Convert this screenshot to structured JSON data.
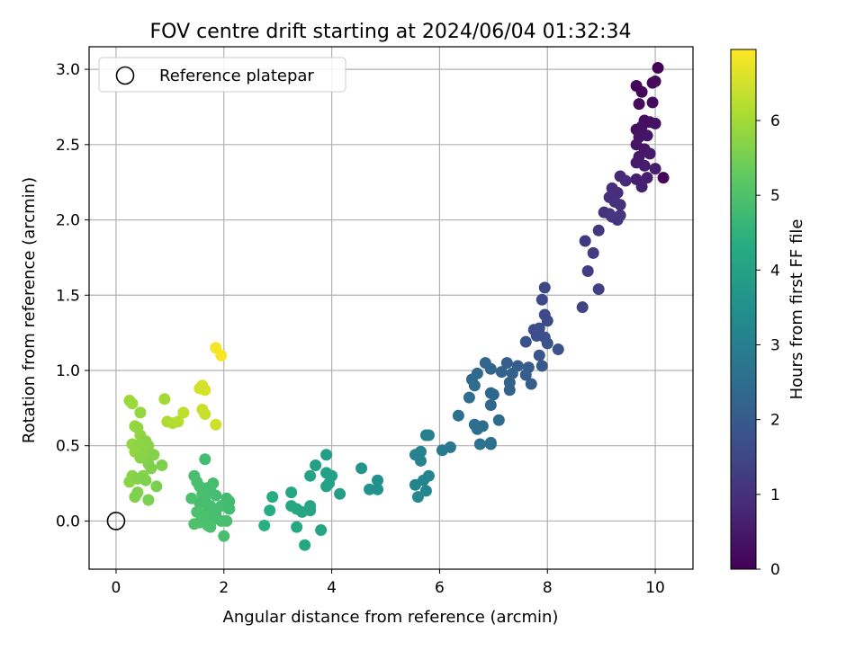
{
  "chart_data": {
    "type": "scatter",
    "title": "FOV centre drift starting at 2024/06/04 01:32:34",
    "xlabel": "Angular distance from reference (arcmin)",
    "ylabel": "Rotation from reference (arcmin)",
    "xlim": [
      -0.5,
      10.7
    ],
    "ylim": [
      -0.32,
      3.15
    ],
    "xticks": [
      0,
      2,
      4,
      6,
      8,
      10
    ],
    "yticks": [
      0.0,
      0.5,
      1.0,
      1.5,
      2.0,
      2.5,
      3.0
    ],
    "xtick_labels": [
      "0",
      "2",
      "4",
      "6",
      "8",
      "10"
    ],
    "ytick_labels": [
      "0.0",
      "0.5",
      "1.0",
      "1.5",
      "2.0",
      "2.5",
      "3.0"
    ],
    "grid": true,
    "legend": {
      "placement": "top-left",
      "label": "Reference platepar"
    },
    "reference_point": {
      "x": 0,
      "y": 0
    },
    "colorbar": {
      "label": "Hours from first FF file",
      "range": [
        0,
        6.95
      ],
      "ticks": [
        0,
        1,
        2,
        3,
        4,
        5,
        6
      ],
      "tick_labels": [
        "0",
        "1",
        "2",
        "3",
        "4",
        "5",
        "6"
      ],
      "colormap": "viridis"
    },
    "points": [
      {
        "x": 10.05,
        "y": 3.01,
        "t": 0.05
      },
      {
        "x": 9.65,
        "y": 2.89,
        "t": 0.12
      },
      {
        "x": 9.75,
        "y": 2.85,
        "t": 0.1
      },
      {
        "x": 9.95,
        "y": 2.91,
        "t": 0.15
      },
      {
        "x": 10.0,
        "y": 2.92,
        "t": 0.18
      },
      {
        "x": 9.7,
        "y": 2.77,
        "t": 0.2
      },
      {
        "x": 9.95,
        "y": 2.78,
        "t": 0.22
      },
      {
        "x": 9.8,
        "y": 2.66,
        "t": 0.25
      },
      {
        "x": 9.9,
        "y": 2.65,
        "t": 0.28
      },
      {
        "x": 9.65,
        "y": 2.6,
        "t": 0.3
      },
      {
        "x": 9.75,
        "y": 2.62,
        "t": 0.32
      },
      {
        "x": 10.0,
        "y": 2.64,
        "t": 0.35
      },
      {
        "x": 9.7,
        "y": 2.55,
        "t": 0.38
      },
      {
        "x": 9.85,
        "y": 2.56,
        "t": 0.4
      },
      {
        "x": 9.65,
        "y": 2.5,
        "t": 0.42
      },
      {
        "x": 9.8,
        "y": 2.47,
        "t": 0.45
      },
      {
        "x": 9.7,
        "y": 2.42,
        "t": 0.48
      },
      {
        "x": 9.9,
        "y": 2.44,
        "t": 0.5
      },
      {
        "x": 9.65,
        "y": 2.38,
        "t": 0.52
      },
      {
        "x": 9.8,
        "y": 2.36,
        "t": 0.55
      },
      {
        "x": 10.0,
        "y": 2.34,
        "t": 0.57
      },
      {
        "x": 9.85,
        "y": 2.28,
        "t": 0.6
      },
      {
        "x": 10.15,
        "y": 2.28,
        "t": 0.06
      },
      {
        "x": 9.65,
        "y": 2.27,
        "t": 0.62
      },
      {
        "x": 9.75,
        "y": 2.22,
        "t": 0.65
      },
      {
        "x": 9.35,
        "y": 2.29,
        "t": 0.8
      },
      {
        "x": 9.45,
        "y": 2.26,
        "t": 0.85
      },
      {
        "x": 9.2,
        "y": 2.21,
        "t": 0.9
      },
      {
        "x": 9.3,
        "y": 2.18,
        "t": 0.92
      },
      {
        "x": 9.15,
        "y": 2.15,
        "t": 0.95
      },
      {
        "x": 9.25,
        "y": 2.12,
        "t": 0.98
      },
      {
        "x": 9.35,
        "y": 2.1,
        "t": 1.0
      },
      {
        "x": 9.05,
        "y": 2.05,
        "t": 1.02
      },
      {
        "x": 9.15,
        "y": 2.04,
        "t": 1.05
      },
      {
        "x": 9.3,
        "y": 2.0,
        "t": 1.08
      },
      {
        "x": 9.2,
        "y": 2.02,
        "t": 1.1
      },
      {
        "x": 9.35,
        "y": 2.03,
        "t": 1.12
      },
      {
        "x": 8.95,
        "y": 1.93,
        "t": 1.15
      },
      {
        "x": 8.7,
        "y": 1.86,
        "t": 1.2
      },
      {
        "x": 8.85,
        "y": 1.78,
        "t": 1.25
      },
      {
        "x": 8.75,
        "y": 1.66,
        "t": 1.3
      },
      {
        "x": 8.95,
        "y": 1.54,
        "t": 1.35
      },
      {
        "x": 8.65,
        "y": 1.42,
        "t": 1.4
      },
      {
        "x": 7.95,
        "y": 1.55,
        "t": 1.5
      },
      {
        "x": 7.9,
        "y": 1.47,
        "t": 1.55
      },
      {
        "x": 7.95,
        "y": 1.37,
        "t": 1.6
      },
      {
        "x": 8.0,
        "y": 1.33,
        "t": 1.62
      },
      {
        "x": 7.75,
        "y": 1.27,
        "t": 1.65
      },
      {
        "x": 7.85,
        "y": 1.28,
        "t": 1.68
      },
      {
        "x": 7.8,
        "y": 1.23,
        "t": 1.7
      },
      {
        "x": 7.95,
        "y": 1.22,
        "t": 1.72
      },
      {
        "x": 7.6,
        "y": 1.19,
        "t": 1.75
      },
      {
        "x": 8.0,
        "y": 1.18,
        "t": 1.78
      },
      {
        "x": 8.2,
        "y": 1.14,
        "t": 1.8
      },
      {
        "x": 7.85,
        "y": 1.1,
        "t": 1.85
      },
      {
        "x": 6.85,
        "y": 1.05,
        "t": 2.3
      },
      {
        "x": 7.25,
        "y": 1.05,
        "t": 2.1
      },
      {
        "x": 7.45,
        "y": 1.03,
        "t": 2.05
      },
      {
        "x": 7.65,
        "y": 1.02,
        "t": 2.0
      },
      {
        "x": 7.9,
        "y": 1.03,
        "t": 1.95
      },
      {
        "x": 6.95,
        "y": 1.01,
        "t": 2.25
      },
      {
        "x": 7.15,
        "y": 0.99,
        "t": 2.2
      },
      {
        "x": 7.35,
        "y": 0.98,
        "t": 2.15
      },
      {
        "x": 7.6,
        "y": 0.97,
        "t": 2.1
      },
      {
        "x": 6.7,
        "y": 0.98,
        "t": 2.4
      },
      {
        "x": 6.6,
        "y": 0.94,
        "t": 2.45
      },
      {
        "x": 7.3,
        "y": 0.92,
        "t": 2.2
      },
      {
        "x": 7.7,
        "y": 0.91,
        "t": 2.05
      },
      {
        "x": 6.65,
        "y": 0.9,
        "t": 2.5
      },
      {
        "x": 7.3,
        "y": 0.87,
        "t": 2.2
      },
      {
        "x": 6.95,
        "y": 0.85,
        "t": 2.35
      },
      {
        "x": 7.0,
        "y": 0.84,
        "t": 2.35
      },
      {
        "x": 6.55,
        "y": 0.82,
        "t": 2.5
      },
      {
        "x": 6.95,
        "y": 0.77,
        "t": 2.4
      },
      {
        "x": 6.35,
        "y": 0.7,
        "t": 2.6
      },
      {
        "x": 7.1,
        "y": 0.67,
        "t": 2.45
      },
      {
        "x": 6.65,
        "y": 0.64,
        "t": 2.55
      },
      {
        "x": 6.8,
        "y": 0.63,
        "t": 2.5
      },
      {
        "x": 6.7,
        "y": 0.61,
        "t": 2.55
      },
      {
        "x": 5.75,
        "y": 0.57,
        "t": 3.0
      },
      {
        "x": 5.8,
        "y": 0.57,
        "t": 3.0
      },
      {
        "x": 6.75,
        "y": 0.51,
        "t": 2.6
      },
      {
        "x": 6.95,
        "y": 0.52,
        "t": 2.55
      },
      {
        "x": 6.95,
        "y": 0.51,
        "t": 2.6
      },
      {
        "x": 6.2,
        "y": 0.49,
        "t": 2.8
      },
      {
        "x": 6.05,
        "y": 0.47,
        "t": 2.85
      },
      {
        "x": 5.65,
        "y": 0.46,
        "t": 3.05
      },
      {
        "x": 5.55,
        "y": 0.44,
        "t": 3.1
      },
      {
        "x": 5.65,
        "y": 0.4,
        "t": 3.1
      },
      {
        "x": 5.8,
        "y": 0.3,
        "t": 3.15
      },
      {
        "x": 5.7,
        "y": 0.27,
        "t": 3.2
      },
      {
        "x": 5.55,
        "y": 0.24,
        "t": 3.2
      },
      {
        "x": 5.75,
        "y": 0.2,
        "t": 3.2
      },
      {
        "x": 5.6,
        "y": 0.16,
        "t": 3.25
      },
      {
        "x": 4.85,
        "y": 0.27,
        "t": 3.5
      },
      {
        "x": 4.55,
        "y": 0.35,
        "t": 3.6
      },
      {
        "x": 4.7,
        "y": 0.21,
        "t": 3.55
      },
      {
        "x": 4.85,
        "y": 0.21,
        "t": 3.55
      },
      {
        "x": 3.9,
        "y": 0.44,
        "t": 3.9
      },
      {
        "x": 3.7,
        "y": 0.37,
        "t": 3.95
      },
      {
        "x": 3.6,
        "y": 0.3,
        "t": 4.0
      },
      {
        "x": 3.9,
        "y": 0.32,
        "t": 3.95
      },
      {
        "x": 4.0,
        "y": 0.3,
        "t": 3.95
      },
      {
        "x": 3.95,
        "y": 0.25,
        "t": 3.95
      },
      {
        "x": 3.9,
        "y": 0.23,
        "t": 3.95
      },
      {
        "x": 4.15,
        "y": 0.18,
        "t": 3.9
      },
      {
        "x": 3.25,
        "y": 0.19,
        "t": 4.1
      },
      {
        "x": 3.25,
        "y": 0.1,
        "t": 4.15
      },
      {
        "x": 3.35,
        "y": 0.08,
        "t": 4.15
      },
      {
        "x": 3.45,
        "y": 0.06,
        "t": 4.15
      },
      {
        "x": 3.6,
        "y": 0.1,
        "t": 4.1
      },
      {
        "x": 3.6,
        "y": 0.07,
        "t": 4.1
      },
      {
        "x": 2.9,
        "y": 0.16,
        "t": 4.3
      },
      {
        "x": 2.85,
        "y": 0.07,
        "t": 4.35
      },
      {
        "x": 2.75,
        "y": -0.03,
        "t": 4.4
      },
      {
        "x": 3.35,
        "y": -0.04,
        "t": 4.2
      },
      {
        "x": 3.8,
        "y": -0.06,
        "t": 4.1
      },
      {
        "x": 3.5,
        "y": -0.16,
        "t": 4.15
      },
      {
        "x": 1.65,
        "y": 0.41,
        "t": 4.8
      },
      {
        "x": 1.45,
        "y": 0.3,
        "t": 4.9
      },
      {
        "x": 1.5,
        "y": 0.26,
        "t": 4.9
      },
      {
        "x": 1.55,
        "y": 0.23,
        "t": 4.9
      },
      {
        "x": 1.7,
        "y": 0.22,
        "t": 4.85
      },
      {
        "x": 1.8,
        "y": 0.25,
        "t": 4.85
      },
      {
        "x": 1.75,
        "y": 0.2,
        "t": 4.85
      },
      {
        "x": 1.6,
        "y": 0.18,
        "t": 4.9
      },
      {
        "x": 1.85,
        "y": 0.17,
        "t": 4.85
      },
      {
        "x": 1.4,
        "y": 0.15,
        "t": 4.95
      },
      {
        "x": 1.65,
        "y": 0.14,
        "t": 4.9
      },
      {
        "x": 2.05,
        "y": 0.15,
        "t": 4.8
      },
      {
        "x": 2.1,
        "y": 0.13,
        "t": 4.8
      },
      {
        "x": 1.55,
        "y": 0.12,
        "t": 4.9
      },
      {
        "x": 1.75,
        "y": 0.1,
        "t": 4.85
      },
      {
        "x": 1.95,
        "y": 0.1,
        "t": 4.85
      },
      {
        "x": 1.7,
        "y": 0.08,
        "t": 4.9
      },
      {
        "x": 2.1,
        "y": 0.08,
        "t": 4.8
      },
      {
        "x": 1.5,
        "y": 0.06,
        "t": 4.95
      },
      {
        "x": 1.85,
        "y": 0.05,
        "t": 4.9
      },
      {
        "x": 1.65,
        "y": 0.03,
        "t": 4.95
      },
      {
        "x": 1.8,
        "y": 0.01,
        "t": 4.9
      },
      {
        "x": 1.95,
        "y": 0.0,
        "t": 4.9
      },
      {
        "x": 2.05,
        "y": 0.0,
        "t": 4.9
      },
      {
        "x": 1.45,
        "y": -0.02,
        "t": 5.0
      },
      {
        "x": 1.55,
        "y": -0.01,
        "t": 4.95
      },
      {
        "x": 1.7,
        "y": -0.03,
        "t": 4.95
      },
      {
        "x": 1.75,
        "y": -0.04,
        "t": 4.95
      },
      {
        "x": 2.0,
        "y": -0.1,
        "t": 4.9
      },
      {
        "x": 0.25,
        "y": 0.8,
        "t": 5.9
      },
      {
        "x": 0.3,
        "y": 0.78,
        "t": 5.9
      },
      {
        "x": 0.45,
        "y": 0.72,
        "t": 5.85
      },
      {
        "x": 0.9,
        "y": 0.81,
        "t": 6.0
      },
      {
        "x": 0.35,
        "y": 0.63,
        "t": 5.85
      },
      {
        "x": 0.4,
        "y": 0.62,
        "t": 5.8
      },
      {
        "x": 0.45,
        "y": 0.57,
        "t": 5.8
      },
      {
        "x": 0.55,
        "y": 0.53,
        "t": 5.75
      },
      {
        "x": 0.3,
        "y": 0.51,
        "t": 5.8
      },
      {
        "x": 0.45,
        "y": 0.51,
        "t": 5.75
      },
      {
        "x": 0.6,
        "y": 0.5,
        "t": 5.7
      },
      {
        "x": 0.5,
        "y": 0.48,
        "t": 5.75
      },
      {
        "x": 0.35,
        "y": 0.46,
        "t": 5.8
      },
      {
        "x": 0.55,
        "y": 0.45,
        "t": 5.7
      },
      {
        "x": 0.7,
        "y": 0.44,
        "t": 5.65
      },
      {
        "x": 0.45,
        "y": 0.42,
        "t": 5.7
      },
      {
        "x": 0.6,
        "y": 0.38,
        "t": 5.65
      },
      {
        "x": 0.85,
        "y": 0.37,
        "t": 5.6
      },
      {
        "x": 0.65,
        "y": 0.35,
        "t": 5.6
      },
      {
        "x": 0.3,
        "y": 0.3,
        "t": 5.7
      },
      {
        "x": 0.5,
        "y": 0.3,
        "t": 5.65
      },
      {
        "x": 0.4,
        "y": 0.28,
        "t": 5.65
      },
      {
        "x": 0.55,
        "y": 0.27,
        "t": 5.6
      },
      {
        "x": 0.25,
        "y": 0.26,
        "t": 5.7
      },
      {
        "x": 0.75,
        "y": 0.23,
        "t": 5.55
      },
      {
        "x": 0.4,
        "y": 0.19,
        "t": 5.6
      },
      {
        "x": 0.35,
        "y": 0.16,
        "t": 5.6
      },
      {
        "x": 0.6,
        "y": 0.14,
        "t": 5.55
      },
      {
        "x": 0.95,
        "y": 0.66,
        "t": 6.1
      },
      {
        "x": 1.05,
        "y": 0.65,
        "t": 6.15
      },
      {
        "x": 1.15,
        "y": 0.66,
        "t": 6.2
      },
      {
        "x": 1.25,
        "y": 0.72,
        "t": 6.3
      },
      {
        "x": 1.6,
        "y": 0.74,
        "t": 6.4
      },
      {
        "x": 1.65,
        "y": 0.71,
        "t": 6.4
      },
      {
        "x": 1.85,
        "y": 0.64,
        "t": 6.45
      },
      {
        "x": 1.6,
        "y": 0.9,
        "t": 6.55
      },
      {
        "x": 1.65,
        "y": 0.87,
        "t": 6.55
      },
      {
        "x": 1.55,
        "y": 0.88,
        "t": 6.5
      },
      {
        "x": 1.85,
        "y": 1.15,
        "t": 6.85
      },
      {
        "x": 1.95,
        "y": 1.1,
        "t": 6.9
      }
    ]
  }
}
